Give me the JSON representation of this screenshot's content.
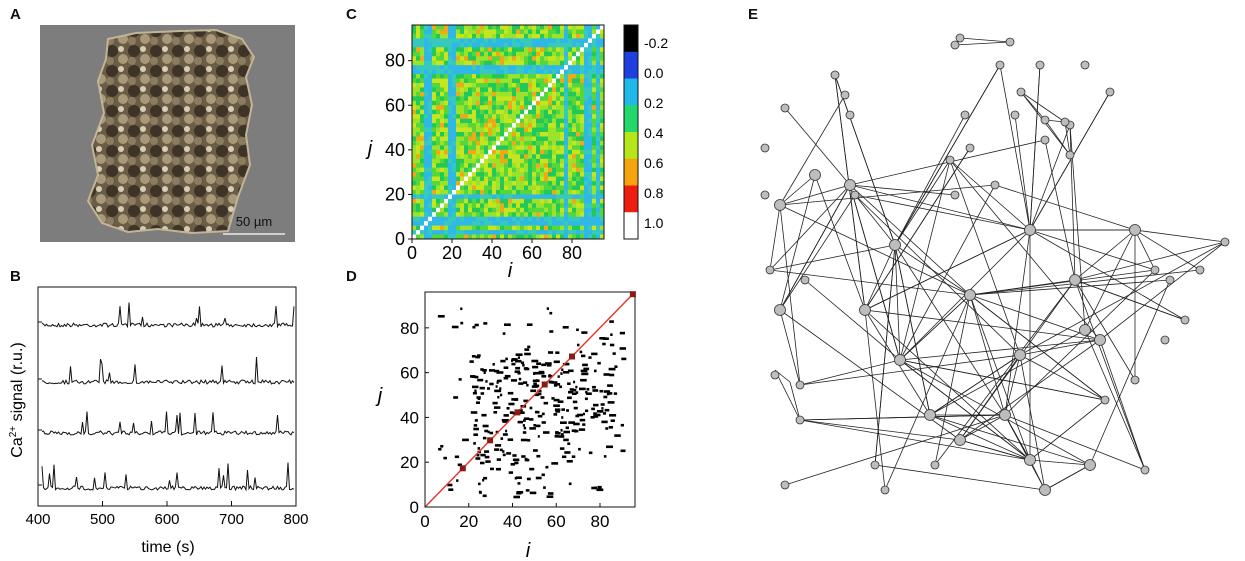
{
  "panels": {
    "A": {
      "label": "A",
      "scalebar_text": "50 µm",
      "colors": {
        "background": "#7d7d7d",
        "tissue_dark": "#3b3226",
        "tissue_light": "#c9bb9c"
      }
    },
    "B": {
      "label": "B",
      "ylabel_prefix": "Ca",
      "ylabel_sup": "2+",
      "ylabel_suffix": " signal (r.u.)",
      "xlabel": "time (s)",
      "xticks": [
        "400",
        "500",
        "600",
        "700",
        "800"
      ]
    },
    "C": {
      "label": "C",
      "xlabel": "i",
      "ylabel": "j",
      "xticks": [
        "0",
        "20",
        "40",
        "60",
        "80"
      ],
      "yticks": [
        "0",
        "20",
        "40",
        "60",
        "80"
      ],
      "colorbar_ticks": [
        "-0.2",
        "0.0",
        "0.2",
        "0.4",
        "0.6",
        "0.8",
        "1.0"
      ],
      "colorbar_colors": [
        "#000000",
        "#1f3fe0",
        "#1fb8e8",
        "#22d86a",
        "#b6e617",
        "#f5a40d",
        "#ee1d0f",
        "#ffffff"
      ]
    },
    "D": {
      "label": "D",
      "xlabel": "i",
      "ylabel": "j",
      "xticks": [
        "0",
        "20",
        "40",
        "60",
        "80"
      ],
      "yticks": [
        "0",
        "20",
        "40",
        "60",
        "80"
      ],
      "diagonal_color": "#e8322a"
    },
    "E": {
      "label": "E",
      "node_color": "#bdbdbd"
    }
  },
  "chart_data": [
    {
      "panel": "B",
      "type": "line",
      "xlabel": "time (s)",
      "ylabel": "Ca2+ signal (r.u.)",
      "xlim": [
        400,
        800
      ],
      "series_count": 4
    },
    {
      "panel": "C",
      "type": "heatmap",
      "xlabel": "i",
      "ylabel": "j",
      "xlim": [
        0,
        96
      ],
      "ylim": [
        0,
        96
      ],
      "colorbar_range": [
        -0.2,
        1.0
      ]
    },
    {
      "panel": "D",
      "type": "scatter",
      "xlabel": "i",
      "ylabel": "j",
      "xlim": [
        0,
        96
      ],
      "ylim": [
        0,
        96
      ]
    }
  ]
}
